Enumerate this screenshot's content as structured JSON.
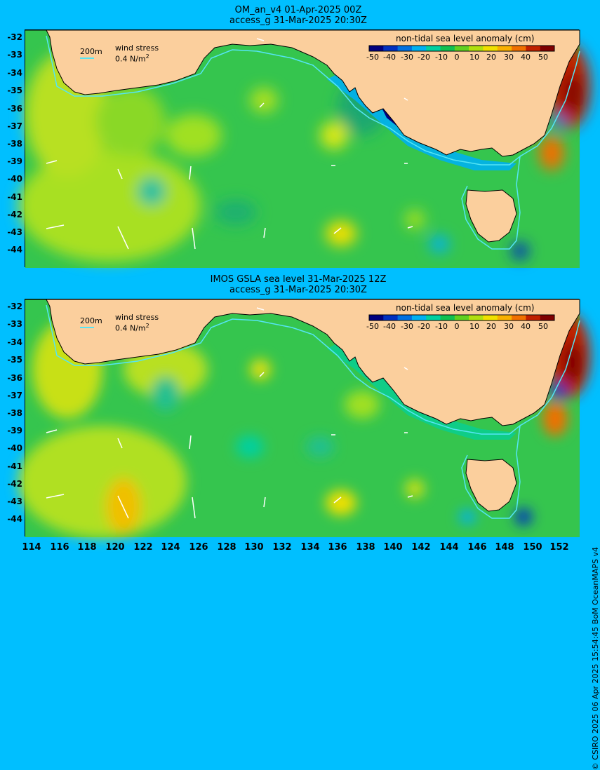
{
  "panels": [
    {
      "title_line1": "OM_an_v4  01-Apr-2025 00Z",
      "title_line2": "access_g 31-Mar-2025 20:30Z"
    },
    {
      "title_line1": "IMOS GSLA sea level  31-Mar-2025 12Z",
      "title_line2": "access_g 31-Mar-2025 20:30Z"
    }
  ],
  "legend": {
    "isobath": "200m",
    "wind_label": "wind stress",
    "wind_scale": "0.4 N/m",
    "wind_scale_exp": "2"
  },
  "colorbar": {
    "title": "non-tidal sea level anomaly (cm)",
    "ticks": [
      "-50",
      "-40",
      "-30",
      "-20",
      "-10",
      "0",
      "10",
      "20",
      "30",
      "40",
      "50"
    ],
    "colors": [
      "#00007f",
      "#0030c0",
      "#0070e0",
      "#00b0f0",
      "#00d0a0",
      "#10c050",
      "#60d020",
      "#b0e010",
      "#f0e000",
      "#f8b000",
      "#f07000",
      "#c02000",
      "#7f0000"
    ]
  },
  "y_axis": [
    "-32",
    "-33",
    "-34",
    "-35",
    "-36",
    "-37",
    "-38",
    "-39",
    "-40",
    "-41",
    "-42",
    "-43",
    "-44"
  ],
  "x_axis": [
    "114",
    "116",
    "118",
    "120",
    "122",
    "124",
    "126",
    "128",
    "130",
    "132",
    "134",
    "136",
    "138",
    "140",
    "142",
    "144",
    "146",
    "148",
    "150",
    "152"
  ],
  "credit": "© CSIRO 2025   06 Apr 2025 15:54:45 BoM OceanMAPS v4",
  "colors": {
    "background": "#00bfff",
    "land": "#fbcf9d",
    "ocean_base": "#35c54e",
    "isobath": "#55e5f5"
  }
}
